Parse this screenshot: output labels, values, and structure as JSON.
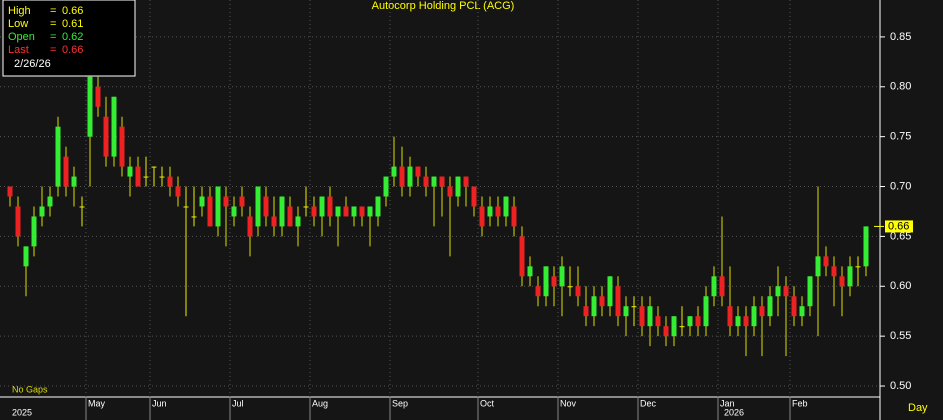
{
  "chart_data": {
    "type": "candlestick",
    "title": "Autocorp Holding PCL (ACG)",
    "info": {
      "rows": [
        {
          "label": "High",
          "value": 0.66,
          "color": "#ffff00"
        },
        {
          "label": "Low",
          "value": 0.61,
          "color": "#ffff00"
        },
        {
          "label": "Open",
          "value": 0.62,
          "color": "#33ee33"
        },
        {
          "label": "Last",
          "value": 0.66,
          "color": "#ff3030"
        }
      ],
      "separator": "=",
      "date": "2/26/26"
    },
    "gap_note": "No Gaps",
    "period": "Day",
    "up_color": "#33ee33",
    "down_color": "#ee2222",
    "flat_color": "#eeee00",
    "grid": true,
    "ylim": [
      0.489,
      0.887
    ],
    "yticks": [
      {
        "value": 0.5,
        "label": "0.50"
      },
      0.55,
      {
        "value": 0.6,
        "label": "0.60"
      },
      0.65,
      {
        "value": 0.7,
        "label": "0.70"
      },
      0.75,
      {
        "value": 0.8,
        "label": "0.80"
      },
      0.85
    ],
    "categories": [
      null,
      null,
      null,
      null,
      null,
      null,
      null,
      null,
      null,
      null,
      "May",
      null,
      null,
      null,
      null,
      null,
      null,
      null,
      "Jun",
      null,
      null,
      null,
      null,
      null,
      null,
      null,
      null,
      null,
      "Jul",
      null,
      null,
      null,
      null,
      null,
      null,
      null,
      null,
      null,
      "Aug",
      null,
      null,
      null,
      null,
      null,
      null,
      null,
      null,
      null,
      "Sep",
      null,
      null,
      null,
      null,
      null,
      null,
      null,
      null,
      null,
      null,
      "Oct",
      null,
      null,
      null,
      null,
      null,
      null,
      null,
      null,
      null,
      "Nov",
      null,
      null,
      null,
      null,
      null,
      null,
      null,
      null,
      null,
      "Dec",
      null,
      null,
      null,
      null,
      null,
      null,
      null,
      null,
      null,
      "Jan",
      null,
      null,
      null,
      null,
      null,
      null,
      null,
      null,
      "Feb",
      null,
      null,
      null,
      null,
      null,
      null,
      null,
      null,
      null
    ],
    "years": [
      "2025",
      null,
      null,
      null,
      null,
      null,
      null,
      null,
      null,
      null,
      null,
      null,
      null,
      null,
      null,
      null,
      null,
      null,
      null,
      null,
      null,
      null,
      null,
      null,
      null,
      null,
      null,
      null,
      null,
      null,
      null,
      null,
      null,
      null,
      null,
      null,
      null,
      null,
      null,
      null,
      null,
      null,
      null,
      null,
      null,
      null,
      null,
      null,
      null,
      null,
      null,
      null,
      null,
      null,
      null,
      null,
      null,
      null,
      null,
      null,
      null,
      null,
      null,
      null,
      null,
      null,
      null,
      null,
      null,
      null,
      null,
      null,
      null,
      null,
      null,
      null,
      null,
      null,
      null,
      null,
      null,
      null,
      null,
      null,
      null,
      null,
      null,
      null,
      null,
      "2026",
      null,
      null,
      null,
      null,
      null,
      null,
      null,
      null,
      null,
      null,
      null,
      null,
      null,
      null,
      null,
      null,
      null,
      null
    ],
    "ohlc": [
      [
        0.7,
        0.7,
        0.68,
        0.69
      ],
      [
        0.68,
        0.69,
        0.64,
        0.65
      ],
      [
        0.62,
        0.64,
        0.59,
        0.64
      ],
      [
        0.64,
        0.68,
        0.63,
        0.67
      ],
      [
        0.67,
        0.7,
        0.66,
        0.68
      ],
      [
        0.68,
        0.7,
        0.67,
        0.69
      ],
      [
        0.7,
        0.77,
        0.69,
        0.76
      ],
      [
        0.73,
        0.74,
        0.69,
        0.7
      ],
      [
        0.7,
        0.72,
        0.68,
        0.71
      ],
      [
        0.68,
        0.69,
        0.66,
        0.68
      ],
      [
        0.75,
        0.81,
        0.7,
        0.81
      ],
      [
        0.8,
        0.81,
        0.77,
        0.78
      ],
      [
        0.77,
        0.79,
        0.72,
        0.73
      ],
      [
        0.73,
        0.79,
        0.72,
        0.79
      ],
      [
        0.76,
        0.77,
        0.71,
        0.72
      ],
      [
        0.71,
        0.73,
        0.69,
        0.72
      ],
      [
        0.72,
        0.73,
        0.7,
        0.7
      ],
      [
        0.71,
        0.73,
        0.7,
        0.71
      ],
      [
        0.72,
        0.72,
        0.7,
        0.72
      ],
      [
        0.71,
        0.72,
        0.7,
        0.71
      ],
      [
        0.71,
        0.72,
        0.69,
        0.7
      ],
      [
        0.7,
        0.71,
        0.68,
        0.69
      ],
      [
        0.68,
        0.7,
        0.57,
        0.68
      ],
      [
        0.67,
        0.7,
        0.66,
        0.67
      ],
      [
        0.68,
        0.7,
        0.67,
        0.69
      ],
      [
        0.69,
        0.7,
        0.66,
        0.66
      ],
      [
        0.66,
        0.7,
        0.65,
        0.7
      ],
      [
        0.69,
        0.7,
        0.64,
        0.68
      ],
      [
        0.67,
        0.69,
        0.66,
        0.68
      ],
      [
        0.69,
        0.7,
        0.67,
        0.68
      ],
      [
        0.67,
        0.68,
        0.63,
        0.65
      ],
      [
        0.66,
        0.7,
        0.65,
        0.7
      ],
      [
        0.69,
        0.7,
        0.66,
        0.67
      ],
      [
        0.67,
        0.69,
        0.65,
        0.66
      ],
      [
        0.66,
        0.69,
        0.65,
        0.69
      ],
      [
        0.68,
        0.69,
        0.66,
        0.66
      ],
      [
        0.66,
        0.68,
        0.64,
        0.67
      ],
      [
        0.68,
        0.7,
        0.67,
        0.68
      ],
      [
        0.68,
        0.69,
        0.66,
        0.67
      ],
      [
        0.67,
        0.69,
        0.65,
        0.69
      ],
      [
        0.69,
        0.7,
        0.66,
        0.67
      ],
      [
        0.67,
        0.68,
        0.64,
        0.68
      ],
      [
        0.68,
        0.69,
        0.67,
        0.67
      ],
      [
        0.67,
        0.68,
        0.66,
        0.68
      ],
      [
        0.68,
        0.68,
        0.66,
        0.67
      ],
      [
        0.67,
        0.68,
        0.64,
        0.68
      ],
      [
        0.67,
        0.69,
        0.66,
        0.69
      ],
      [
        0.69,
        0.71,
        0.68,
        0.71
      ],
      [
        0.71,
        0.75,
        0.7,
        0.72
      ],
      [
        0.72,
        0.74,
        0.69,
        0.7
      ],
      [
        0.7,
        0.73,
        0.69,
        0.72
      ],
      [
        0.72,
        0.72,
        0.7,
        0.71
      ],
      [
        0.71,
        0.72,
        0.69,
        0.7
      ],
      [
        0.7,
        0.71,
        0.66,
        0.71
      ],
      [
        0.71,
        0.71,
        0.67,
        0.7
      ],
      [
        0.7,
        0.71,
        0.63,
        0.69
      ],
      [
        0.69,
        0.71,
        0.68,
        0.71
      ],
      [
        0.71,
        0.71,
        0.68,
        0.7
      ],
      [
        0.7,
        0.7,
        0.67,
        0.68
      ],
      [
        0.68,
        0.69,
        0.65,
        0.66
      ],
      [
        0.67,
        0.69,
        0.66,
        0.68
      ],
      [
        0.68,
        0.69,
        0.66,
        0.67
      ],
      [
        0.67,
        0.69,
        0.66,
        0.69
      ],
      [
        0.68,
        0.69,
        0.65,
        0.66
      ],
      [
        0.65,
        0.66,
        0.6,
        0.61
      ],
      [
        0.61,
        0.63,
        0.6,
        0.62
      ],
      [
        0.6,
        0.61,
        0.58,
        0.59
      ],
      [
        0.59,
        0.62,
        0.58,
        0.62
      ],
      [
        0.61,
        0.62,
        0.58,
        0.6
      ],
      [
        0.6,
        0.63,
        0.57,
        0.62
      ],
      [
        0.6,
        0.62,
        0.59,
        0.6
      ],
      [
        0.6,
        0.62,
        0.58,
        0.59
      ],
      [
        0.58,
        0.6,
        0.56,
        0.57
      ],
      [
        0.57,
        0.6,
        0.56,
        0.59
      ],
      [
        0.59,
        0.6,
        0.57,
        0.58
      ],
      [
        0.58,
        0.61,
        0.57,
        0.61
      ],
      [
        0.6,
        0.61,
        0.56,
        0.57
      ],
      [
        0.57,
        0.59,
        0.55,
        0.58
      ],
      [
        0.58,
        0.59,
        0.56,
        0.58
      ],
      [
        0.58,
        0.59,
        0.55,
        0.56
      ],
      [
        0.56,
        0.59,
        0.54,
        0.58
      ],
      [
        0.57,
        0.58,
        0.55,
        0.56
      ],
      [
        0.56,
        0.57,
        0.54,
        0.55
      ],
      [
        0.55,
        0.57,
        0.54,
        0.57
      ],
      [
        0.56,
        0.58,
        0.55,
        0.56
      ],
      [
        0.56,
        0.57,
        0.55,
        0.57
      ],
      [
        0.57,
        0.58,
        0.55,
        0.56
      ],
      [
        0.56,
        0.6,
        0.55,
        0.59
      ],
      [
        0.59,
        0.62,
        0.58,
        0.61
      ],
      [
        0.61,
        0.67,
        0.58,
        0.59
      ],
      [
        0.58,
        0.62,
        0.55,
        0.56
      ],
      [
        0.56,
        0.58,
        0.55,
        0.57
      ],
      [
        0.57,
        0.58,
        0.53,
        0.56
      ],
      [
        0.56,
        0.59,
        0.55,
        0.58
      ],
      [
        0.58,
        0.59,
        0.53,
        0.57
      ],
      [
        0.57,
        0.6,
        0.56,
        0.59
      ],
      [
        0.59,
        0.62,
        0.57,
        0.6
      ],
      [
        0.6,
        0.61,
        0.53,
        0.59
      ],
      [
        0.59,
        0.6,
        0.56,
        0.57
      ],
      [
        0.57,
        0.59,
        0.56,
        0.58
      ],
      [
        0.58,
        0.61,
        0.57,
        0.61
      ],
      [
        0.61,
        0.7,
        0.55,
        0.63
      ],
      [
        0.63,
        0.64,
        0.61,
        0.62
      ],
      [
        0.62,
        0.63,
        0.58,
        0.61
      ],
      [
        0.61,
        0.62,
        0.57,
        0.6
      ],
      [
        0.6,
        0.63,
        0.59,
        0.62
      ],
      [
        0.62,
        0.63,
        0.6,
        0.62
      ],
      [
        0.62,
        0.66,
        0.61,
        0.66
      ]
    ]
  }
}
